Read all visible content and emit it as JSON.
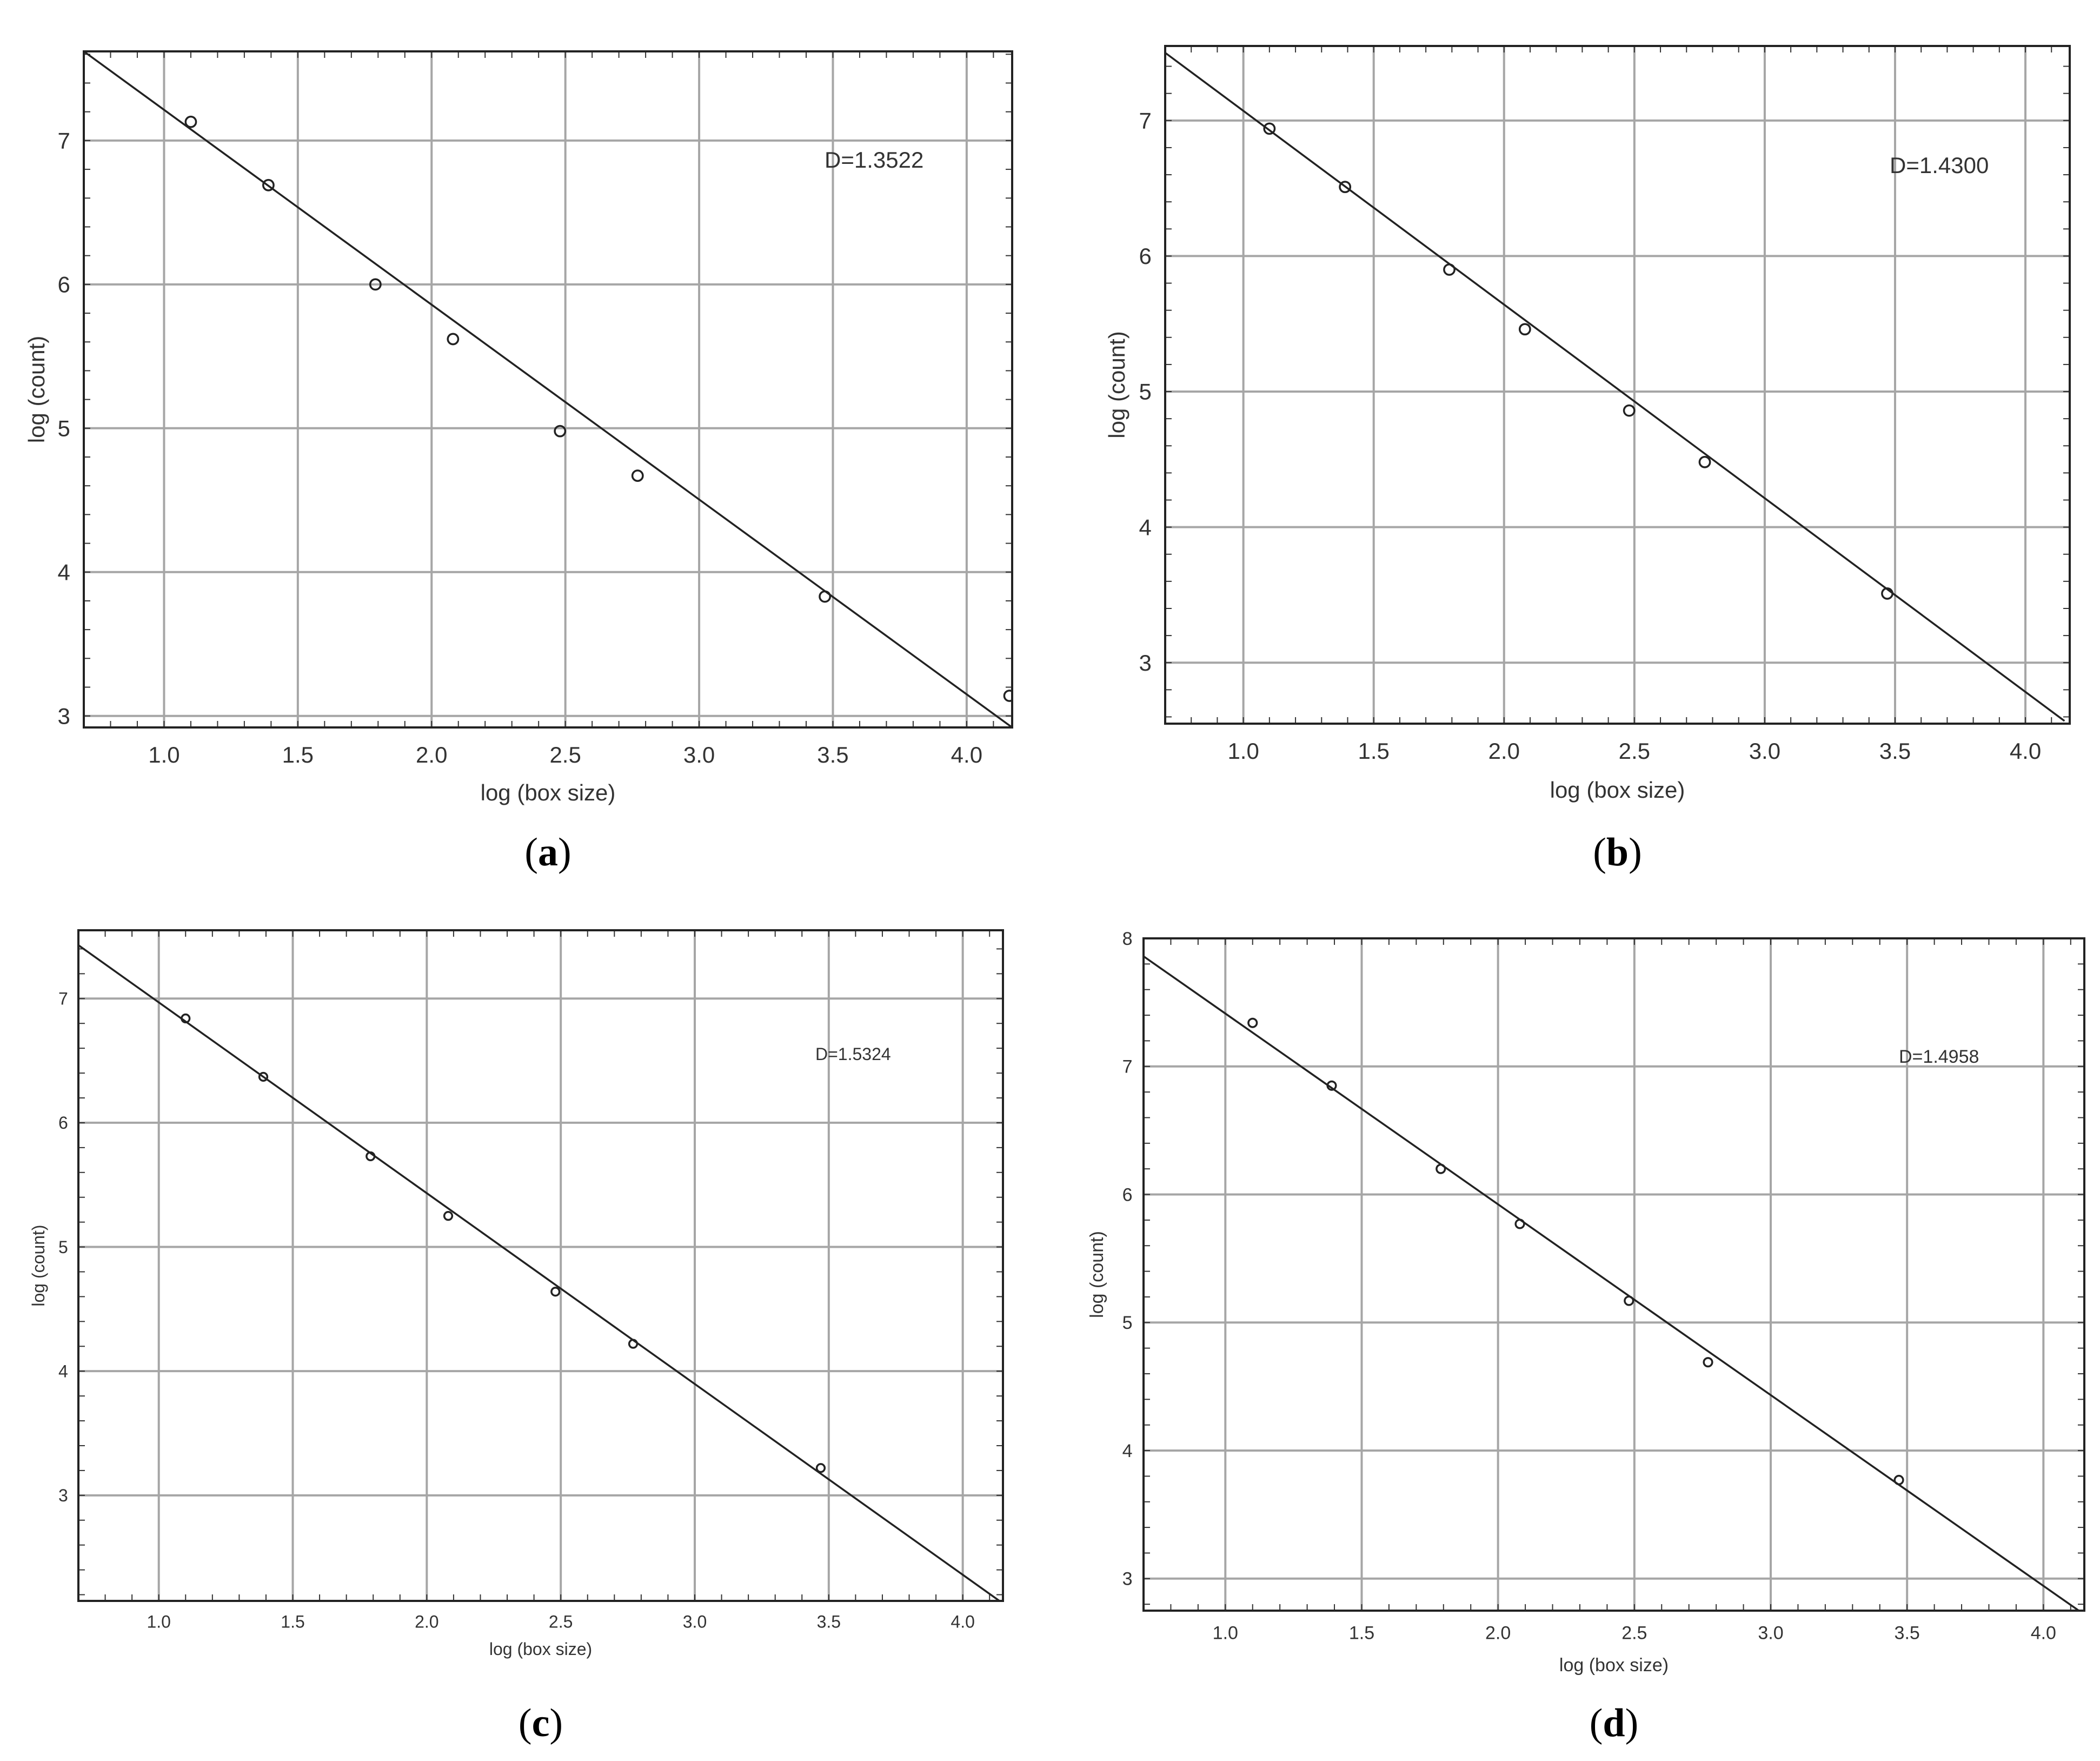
{
  "chart_data": [
    {
      "type": "scatter",
      "panel": "a",
      "caption_letter": "a",
      "xlabel": "log (box size)",
      "ylabel": "log (count)",
      "annotation": "D=1.3522",
      "xlim": [
        0.7,
        4.17
      ],
      "ylim": [
        2.92,
        7.62
      ],
      "xticks": [
        1.0,
        1.5,
        2.0,
        2.5,
        3.0,
        3.5,
        4.0
      ],
      "xtick_labels": [
        "1.0",
        "1.5",
        "2.0",
        "2.5",
        "3.0",
        "3.5",
        "4.0"
      ],
      "yticks": [
        3,
        4,
        5,
        6,
        7
      ],
      "ytick_labels": [
        "3",
        "4",
        "5",
        "6",
        "7"
      ],
      "grid": true,
      "points": {
        "x": [
          1.1,
          1.39,
          1.79,
          2.08,
          2.48,
          2.77,
          3.47,
          4.16
        ],
        "y": [
          7.13,
          6.69,
          6.0,
          5.62,
          4.98,
          4.67,
          3.83,
          3.14
        ]
      },
      "fit_line": {
        "x": [
          0.7,
          4.17
        ],
        "y": [
          7.62,
          2.92
        ]
      }
    },
    {
      "type": "scatter",
      "panel": "b",
      "caption_letter": "b",
      "xlabel": "log (box size)",
      "ylabel": "log (count)",
      "annotation": "D=1.4300",
      "xlim": [
        0.7,
        4.17
      ],
      "ylim": [
        2.55,
        7.55
      ],
      "xticks": [
        1.0,
        1.5,
        2.0,
        2.5,
        3.0,
        3.5,
        4.0
      ],
      "xtick_labels": [
        "1.0",
        "1.5",
        "2.0",
        "2.5",
        "3.0",
        "3.5",
        "4.0"
      ],
      "yticks": [
        3,
        4,
        5,
        6,
        7
      ],
      "ytick_labels": [
        "3",
        "4",
        "5",
        "6",
        "7"
      ],
      "grid": true,
      "points": {
        "x": [
          1.1,
          1.39,
          1.79,
          2.08,
          2.48,
          2.77,
          3.47
        ],
        "y": [
          6.94,
          6.51,
          5.9,
          5.46,
          4.86,
          4.48,
          3.51
        ]
      },
      "fit_line": {
        "x": [
          0.7,
          4.15
        ],
        "y": [
          7.5,
          2.57
        ]
      }
    },
    {
      "type": "scatter",
      "panel": "c",
      "caption_letter": "c",
      "xlabel": "log (box size)",
      "ylabel": "log (count)",
      "annotation": "D=1.5324",
      "xlim": [
        0.7,
        4.15
      ],
      "ylim": [
        2.15,
        7.55
      ],
      "xticks": [
        1.0,
        1.5,
        2.0,
        2.5,
        3.0,
        3.5,
        4.0
      ],
      "xtick_labels": [
        "1.0",
        "1.5",
        "2.0",
        "2.5",
        "3.0",
        "3.5",
        "4.0"
      ],
      "yticks": [
        3,
        4,
        5,
        6,
        7
      ],
      "ytick_labels": [
        "3",
        "4",
        "5",
        "6",
        "7"
      ],
      "grid": true,
      "points": {
        "x": [
          1.1,
          1.39,
          1.79,
          2.08,
          2.48,
          2.77,
          3.47
        ],
        "y": [
          6.84,
          6.37,
          5.73,
          5.25,
          4.64,
          4.22,
          3.22
        ]
      },
      "fit_line": {
        "x": [
          0.7,
          4.15
        ],
        "y": [
          7.43,
          2.13
        ]
      }
    },
    {
      "type": "scatter",
      "panel": "d",
      "caption_letter": "d",
      "xlabel": "log (box size)",
      "ylabel": "log (count)",
      "annotation": "D=1.4958",
      "xlim": [
        0.7,
        4.15
      ],
      "ylim": [
        2.75,
        8.0
      ],
      "xticks": [
        1.0,
        1.5,
        2.0,
        2.5,
        3.0,
        3.5,
        4.0
      ],
      "xtick_labels": [
        "1.0",
        "1.5",
        "2.0",
        "2.5",
        "3.0",
        "3.5",
        "4.0"
      ],
      "yticks": [
        3,
        4,
        5,
        6,
        7,
        8
      ],
      "ytick_labels": [
        "3",
        "4",
        "5",
        "6",
        "7",
        "8"
      ],
      "grid": true,
      "points": {
        "x": [
          1.1,
          1.39,
          1.79,
          2.08,
          2.48,
          2.77,
          3.47
        ],
        "y": [
          7.34,
          6.85,
          6.2,
          5.77,
          5.17,
          4.69,
          3.77
        ]
      },
      "fit_line": {
        "x": [
          0.7,
          4.15
        ],
        "y": [
          7.86,
          2.72
        ]
      }
    }
  ]
}
